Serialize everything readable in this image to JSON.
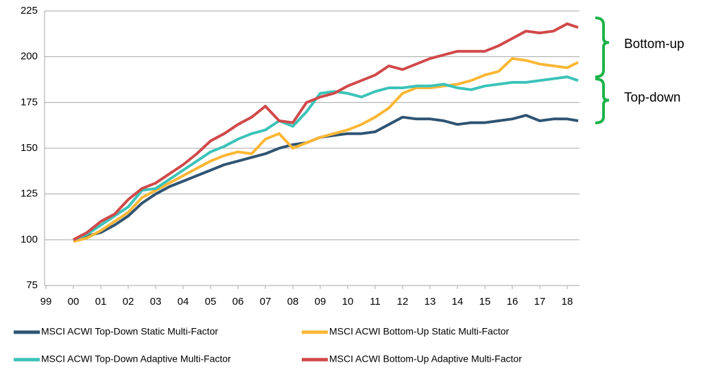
{
  "chart_data": {
    "type": "line",
    "x": [
      2000,
      2000.5,
      2001,
      2001.5,
      2002,
      2002.5,
      2003,
      2003.5,
      2004,
      2004.5,
      2005,
      2005.5,
      2006,
      2006.5,
      2007,
      2007.5,
      2008,
      2008.5,
      2009,
      2009.5,
      2010,
      2010.5,
      2011,
      2011.5,
      2012,
      2012.5,
      2013,
      2013.5,
      2014,
      2014.5,
      2015,
      2015.5,
      2016,
      2016.5,
      2017,
      2017.5,
      2018,
      2018.4
    ],
    "series": [
      {
        "name": "MSCI ACWI Top-Down Static Multi-Factor",
        "color": "#2f5473",
        "values": [
          100,
          102,
          104,
          108,
          113,
          120,
          125,
          129,
          132,
          135,
          138,
          141,
          143,
          145,
          147,
          150,
          152,
          153,
          156,
          157,
          158,
          158,
          159,
          163,
          167,
          166,
          166,
          165,
          163,
          164,
          164,
          165,
          166,
          168,
          165,
          166,
          166,
          165
        ]
      },
      {
        "name": "MSCI ACWI Bottom-Up Static Multi-Factor",
        "color": "#fbb735",
        "values": [
          99,
          101,
          105,
          110,
          115,
          123,
          127,
          131,
          135,
          139,
          143,
          146,
          148,
          147,
          155,
          158,
          150,
          153,
          156,
          158,
          160,
          163,
          167,
          172,
          180,
          183,
          183,
          184,
          185,
          187,
          190,
          192,
          199,
          198,
          196,
          195,
          194,
          197
        ]
      },
      {
        "name": "MSCI ACWI Top-Down Adaptive Multi-Factor",
        "color": "#3cc3b9",
        "values": [
          100,
          103,
          108,
          113,
          118,
          127,
          128,
          133,
          138,
          143,
          148,
          151,
          155,
          158,
          160,
          165,
          162,
          170,
          180,
          181,
          180,
          178,
          181,
          183,
          183,
          184,
          184,
          185,
          183,
          182,
          184,
          185,
          186,
          186,
          187,
          188,
          189,
          187
        ]
      },
      {
        "name": "MSCI ACWI Bottom-Up Adaptive Multi-Factor",
        "color": "#d0494a",
        "values": [
          100,
          104,
          110,
          114,
          122,
          128,
          131,
          136,
          141,
          147,
          154,
          158,
          163,
          167,
          173,
          165,
          164,
          175,
          178,
          180,
          184,
          187,
          190,
          195,
          193,
          196,
          199,
          201,
          203,
          203,
          203,
          206,
          210,
          214,
          213,
          214,
          218,
          216
        ]
      }
    ],
    "xlim": [
      1998.95,
      2018.45
    ],
    "xticks": [
      {
        "value": 1999,
        "label": "99"
      },
      {
        "value": 2000,
        "label": "00"
      },
      {
        "value": 2001,
        "label": "01"
      },
      {
        "value": 2002,
        "label": "02"
      },
      {
        "value": 2003,
        "label": "03"
      },
      {
        "value": 2004,
        "label": "04"
      },
      {
        "value": 2005,
        "label": "05"
      },
      {
        "value": 2006,
        "label": "06"
      },
      {
        "value": 2007,
        "label": "07"
      },
      {
        "value": 2008,
        "label": "08"
      },
      {
        "value": 2009,
        "label": "09"
      },
      {
        "value": 2010,
        "label": "10"
      },
      {
        "value": 2011,
        "label": "11"
      },
      {
        "value": 2012,
        "label": "12"
      },
      {
        "value": 2013,
        "label": "13"
      },
      {
        "value": 2014,
        "label": "14"
      },
      {
        "value": 2015,
        "label": "15"
      },
      {
        "value": 2016,
        "label": "16"
      },
      {
        "value": 2017,
        "label": "17"
      },
      {
        "value": 2018,
        "label": "18"
      }
    ],
    "ylim": [
      75,
      225
    ],
    "yticks": [
      75,
      100,
      125,
      150,
      175,
      200,
      225
    ],
    "grid": true,
    "legend": "bottom",
    "annotations": [
      "Bottom-up",
      "Top-down"
    ]
  }
}
